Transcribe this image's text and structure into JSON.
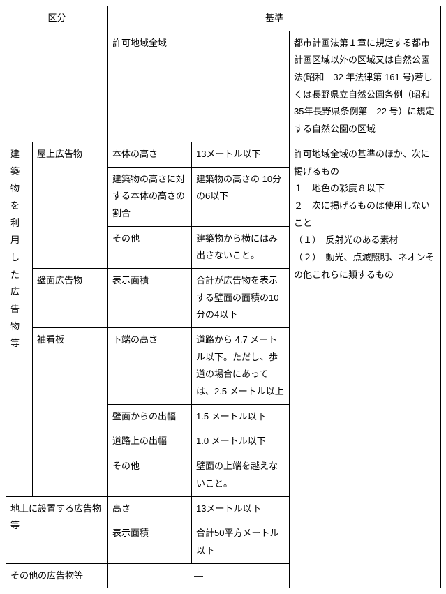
{
  "headers": {
    "category": "区分",
    "standard": "基準"
  },
  "row_top": {
    "area": "許可地域全域",
    "desc": "都市計画法第１章に規定する都市計画区域以外の区域又は自然公園法(昭和　32 年法律第 161 号)若しくは長野県立自然公園条例（昭和 35年長野県条例第　22 号）に規定する自然公園の区域"
  },
  "group1": {
    "label": "建築物を利用した広告物等",
    "okugai": {
      "label": "屋上広告物",
      "r1c": "本体の高さ",
      "r1d": "13メートル以下",
      "r2c": "建築物の高さに対する本体の高さの割合",
      "r2d": "建築物の高さの 10分の6以下",
      "r3c": "その他",
      "r3d": "建築物から横にはみ出さないこと。"
    },
    "hekimen": {
      "label": "壁面広告物",
      "r1c": "表示面積",
      "r1d": "合計が広告物を表示する壁面の面積の10分の4以下"
    },
    "sode": {
      "label": "袖看板",
      "r1c": "下端の高さ",
      "r1d": "道路から 4.7 メートル以下。ただし、歩道の場合にあっては、2.5 メートル以上",
      "r2c": "壁面からの出幅",
      "r2d": "1.5 メートル以下",
      "r3c": "道路上の出幅",
      "r3d": "1.0 メートル以下",
      "r4c": "その他",
      "r4d": "壁面の上端を越えないこと。"
    },
    "right": "許可地域全域の基準のほか、次に掲げるもの\n１　地色の彩度８以下\n２　次に掲げるものは使用しないこと\n（１）　反射光のある素材\n（２）　動光、点滅照明、ネオンその他これらに類するもの"
  },
  "group2": {
    "label": "地上に設置する広告物等",
    "r1c": "高さ",
    "r1d": "13メートル以下",
    "r2c": "表示面積",
    "r2d": "合計50平方メートル以下"
  },
  "group3": {
    "label": "その他の広告物等",
    "dash": "―"
  }
}
